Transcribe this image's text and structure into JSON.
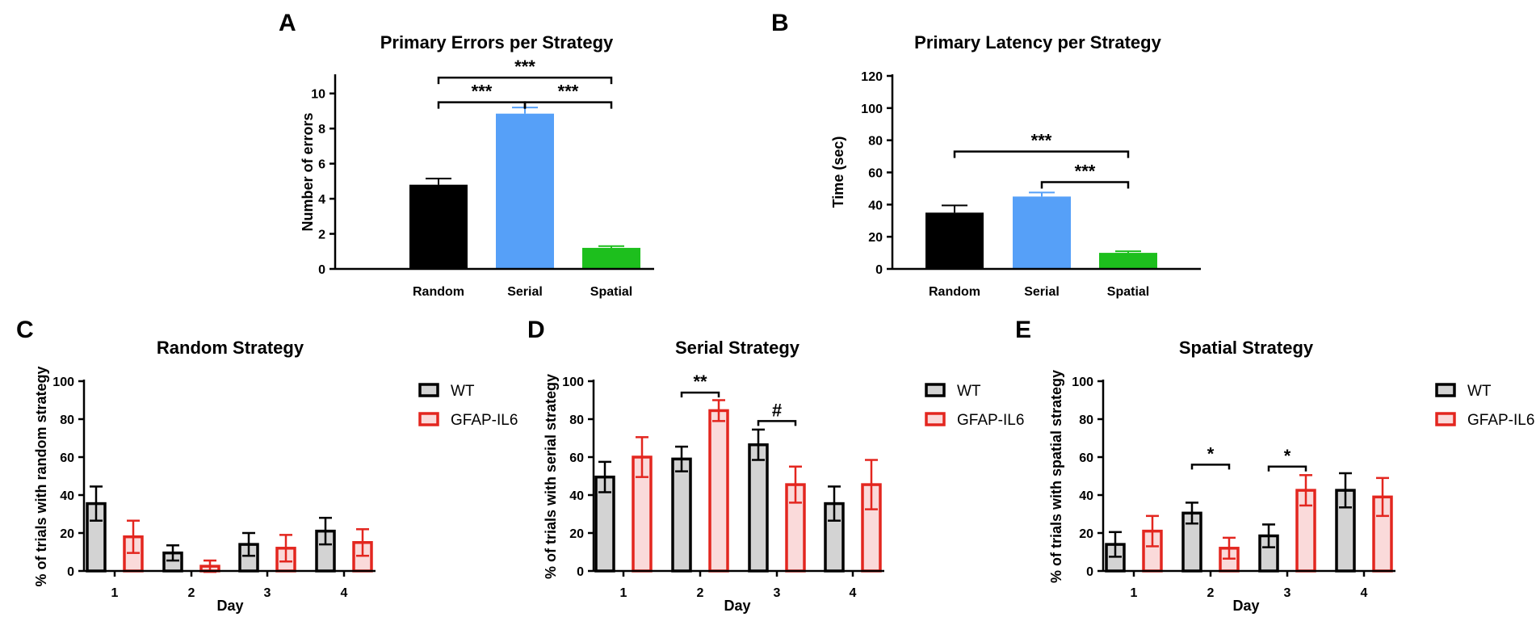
{
  "chart_data": [
    {
      "panel": "A",
      "type": "bar",
      "title": "Primary Errors per Strategy",
      "xlabel": "",
      "ylabel": "Number of errors",
      "ylim": [
        0,
        11
      ],
      "yticks": [
        0,
        2,
        4,
        6,
        8,
        10
      ],
      "categories": [
        "Random",
        "Serial",
        "Spatial"
      ],
      "values": [
        4.8,
        8.85,
        1.2
      ],
      "errors": [
        0.35,
        0.35,
        0.1
      ],
      "colors": [
        "#000000",
        "#56A0F8",
        "#1DBF1D"
      ],
      "significance": [
        {
          "from": 0,
          "to": 2,
          "y": 10.9,
          "label": "***"
        },
        {
          "from": 0,
          "to": 1,
          "y": 9.5,
          "label": "***"
        },
        {
          "from": 1,
          "to": 2,
          "y": 9.5,
          "label": "***"
        }
      ]
    },
    {
      "panel": "B",
      "type": "bar",
      "title": "Primary Latency per Strategy",
      "xlabel": "",
      "ylabel": "Time (sec)",
      "ylim": [
        0,
        120
      ],
      "yticks": [
        0,
        20,
        40,
        60,
        80,
        100,
        120
      ],
      "categories": [
        "Random",
        "Serial",
        "Spatial"
      ],
      "values": [
        35,
        45,
        10
      ],
      "errors": [
        4.5,
        2.5,
        1
      ],
      "colors": [
        "#000000",
        "#56A0F8",
        "#1DBF1D"
      ],
      "significance": [
        {
          "from": 0,
          "to": 2,
          "y": 73,
          "label": "***"
        },
        {
          "from": 1,
          "to": 2,
          "y": 54,
          "label": "***"
        }
      ]
    },
    {
      "panel": "C",
      "type": "bar",
      "title": "Random Strategy",
      "xlabel": "Day",
      "ylabel": "% of trials with random strategy",
      "ylim": [
        0,
        100
      ],
      "yticks": [
        0,
        20,
        40,
        60,
        80,
        100
      ],
      "categories": [
        "1",
        "2",
        "3",
        "4"
      ],
      "legend": [
        "WT",
        "GFAP-IL6"
      ],
      "series": [
        {
          "name": "WT",
          "values": [
            35.5,
            9.5,
            14,
            21
          ],
          "errors": [
            9,
            4,
            6,
            7
          ],
          "edge": "#000000",
          "fill": "#D3D3D3"
        },
        {
          "name": "GFAP-IL6",
          "values": [
            18,
            2.5,
            12,
            15
          ],
          "errors": [
            8.5,
            3,
            7,
            7
          ],
          "edge": "#E3261F",
          "fill": "#FADADA"
        }
      ],
      "significance": []
    },
    {
      "panel": "D",
      "type": "bar",
      "title": "Serial Strategy",
      "xlabel": "Day",
      "ylabel": "% of trials with serial strategy",
      "ylim": [
        0,
        100
      ],
      "yticks": [
        0,
        20,
        40,
        60,
        80,
        100
      ],
      "categories": [
        "1",
        "2",
        "3",
        "4"
      ],
      "legend": [
        "WT",
        "GFAP-IL6"
      ],
      "series": [
        {
          "name": "WT",
          "values": [
            49.5,
            59,
            66.5,
            35.5
          ],
          "errors": [
            8,
            6.5,
            8,
            9
          ],
          "edge": "#000000",
          "fill": "#D3D3D3"
        },
        {
          "name": "GFAP-IL6",
          "values": [
            60,
            84.5,
            45.5,
            45.5
          ],
          "errors": [
            10.5,
            5.5,
            9.5,
            13
          ],
          "edge": "#E3261F",
          "fill": "#FADADA"
        }
      ],
      "significance": [
        {
          "day": 1,
          "y": 94,
          "label": "**",
          "bold": true
        },
        {
          "day": 2,
          "y": 79,
          "label": "#",
          "bold": false
        }
      ]
    },
    {
      "panel": "E",
      "type": "bar",
      "title": "Spatial Strategy",
      "xlabel": "Day",
      "ylabel": "% of trials with spatial strategy",
      "ylim": [
        0,
        100
      ],
      "yticks": [
        0,
        20,
        40,
        60,
        80,
        100
      ],
      "categories": [
        "1",
        "2",
        "3",
        "4"
      ],
      "legend": [
        "WT",
        "GFAP-IL6"
      ],
      "series": [
        {
          "name": "WT",
          "values": [
            14,
            30.5,
            18.5,
            42.5
          ],
          "errors": [
            6.5,
            5.5,
            6,
            9
          ],
          "edge": "#000000",
          "fill": "#D3D3D3"
        },
        {
          "name": "GFAP-IL6",
          "values": [
            21,
            12,
            42.5,
            39
          ],
          "errors": [
            8,
            5.5,
            8,
            10
          ],
          "edge": "#E3261F",
          "fill": "#FADADA"
        }
      ],
      "significance": [
        {
          "day": 1,
          "y": 56,
          "label": "*",
          "bold": true
        },
        {
          "day": 2,
          "y": 55,
          "label": "*",
          "bold": true
        }
      ]
    }
  ]
}
